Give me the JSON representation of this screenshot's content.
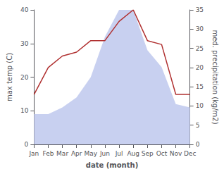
{
  "chart_data": {
    "type": "line",
    "categories": [
      "Jan",
      "Feb",
      "Mar",
      "Apr",
      "May",
      "Jun",
      "Jul",
      "Aug",
      "Sep",
      "Oct",
      "Nov",
      "Dec"
    ],
    "xlabel": "date (month)",
    "ylabel": "max temp (C)",
    "y2label": "med. precipitation (kg/m2)",
    "ylim": [
      0,
      40
    ],
    "yticks": [
      0,
      10,
      20,
      30,
      40
    ],
    "y2lim": [
      0,
      35
    ],
    "y2ticks": [
      0,
      5,
      10,
      15,
      20,
      25,
      30,
      35
    ],
    "grid": false,
    "series": [
      {
        "type": "area",
        "color": "#c8d0f0",
        "values": [
          9,
          9,
          11,
          14,
          20,
          32,
          40,
          40,
          28,
          23,
          12,
          11
        ]
      },
      {
        "type": "line",
        "axis": "y2",
        "color": "#b03030",
        "values": [
          13,
          20,
          23,
          24,
          27,
          27,
          32,
          35,
          27,
          26,
          13,
          13
        ]
      }
    ]
  }
}
